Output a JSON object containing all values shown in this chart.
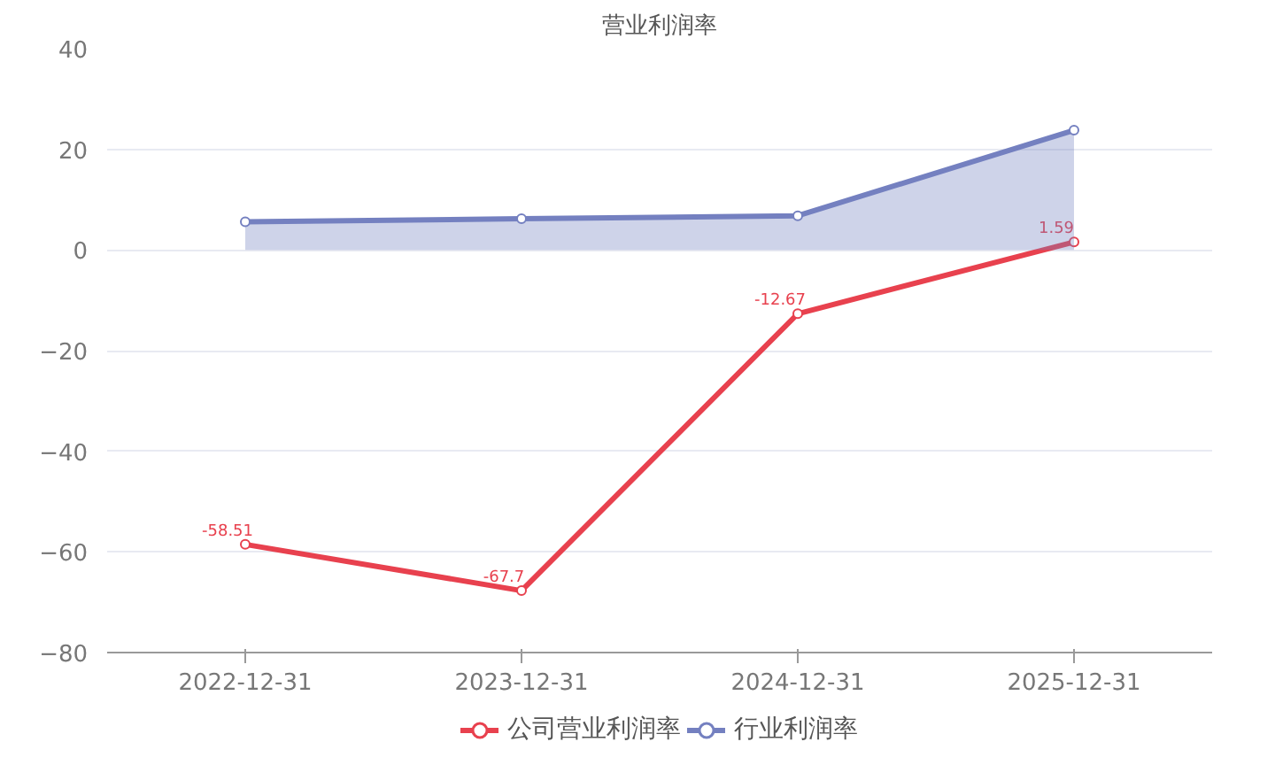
{
  "chart_data": {
    "type": "line",
    "title": "营业利润率",
    "categories": [
      "2022-12-31",
      "2023-12-31",
      "2024-12-31",
      "2025-12-31"
    ],
    "series": [
      {
        "name": "公司营业利润率",
        "color": "#e8414e",
        "values": [
          -58.51,
          -67.7,
          -12.67,
          1.59
        ],
        "value_labels": [
          "-58.51",
          "-67.7",
          "-12.67",
          "1.59"
        ]
      },
      {
        "name": "行业利润率",
        "type": "area",
        "color": "#7480c0",
        "values": [
          5.6,
          6.2,
          6.8,
          23.8
        ]
      }
    ],
    "ylim": [
      -80,
      40
    ],
    "yticks": [
      -80,
      -60,
      -40,
      -20,
      0,
      20,
      40
    ],
    "grid": "y",
    "legend": "bottom",
    "marker": "circle",
    "line_style": "solid"
  }
}
